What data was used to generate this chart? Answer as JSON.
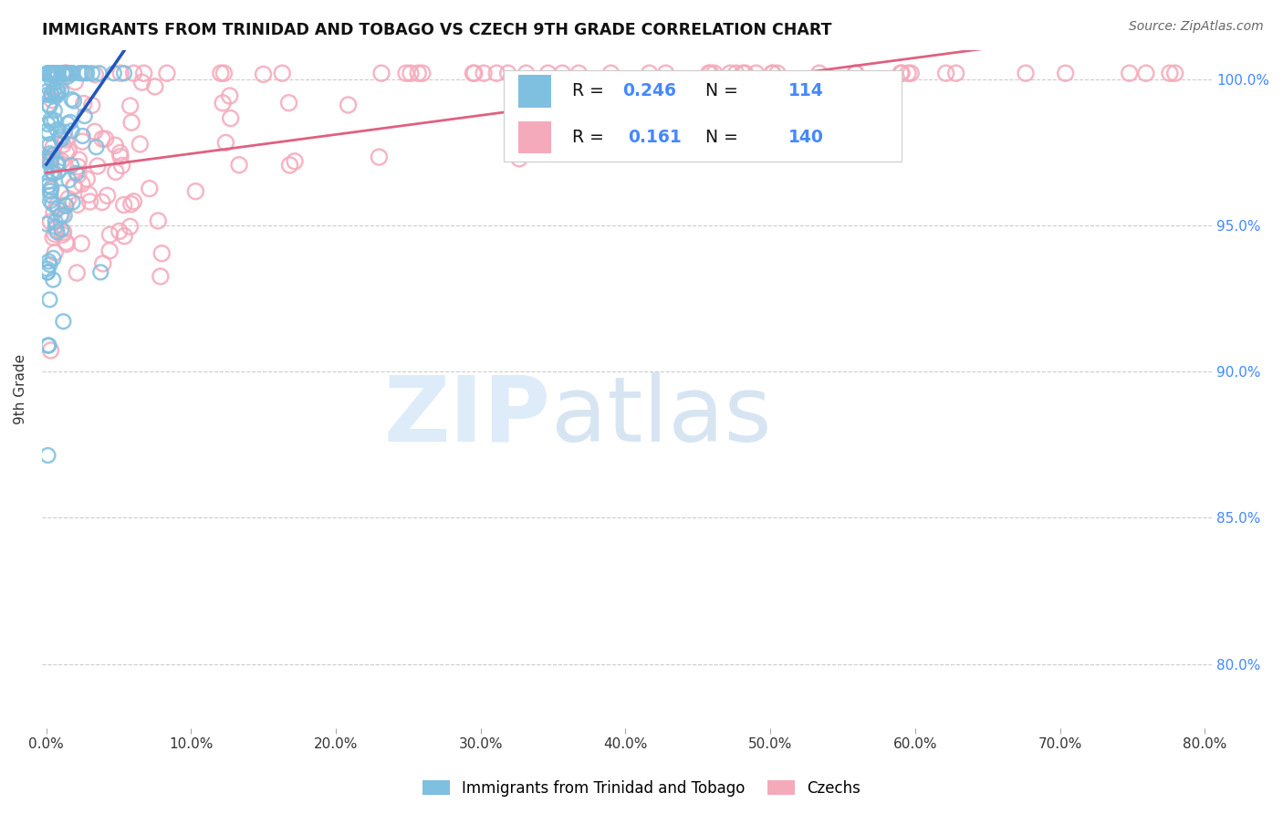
{
  "title": "IMMIGRANTS FROM TRINIDAD AND TOBAGO VS CZECH 9TH GRADE CORRELATION CHART",
  "source": "Source: ZipAtlas.com",
  "ylabel": "9th Grade",
  "blue_color": "#7fbfdf",
  "blue_edge_color": "#5599cc",
  "blue_line_color": "#2255bb",
  "pink_color": "#f4aabb",
  "pink_edge_color": "#e08090",
  "pink_line_color": "#e06080",
  "legend_label_blue": "Immigrants from Trinidad and Tobago",
  "legend_label_pink": "Czechs",
  "right_tick_color": "#4488ff",
  "watermark_zip_color": "#c8dff5",
  "watermark_atlas_color": "#b0cce8",
  "xlim_min": -0.003,
  "xlim_max": 0.805,
  "ylim_min": 0.778,
  "ylim_max": 1.01,
  "x_tick_vals": [
    0.0,
    0.1,
    0.2,
    0.3,
    0.4,
    0.5,
    0.6,
    0.7,
    0.8
  ],
  "x_tick_labels": [
    "0.0%",
    "10.0%",
    "20.0%",
    "30.0%",
    "40.0%",
    "50.0%",
    "60.0%",
    "70.0%",
    "80.0%"
  ],
  "y_tick_vals": [
    0.8,
    0.85,
    0.9,
    0.95,
    1.0
  ],
  "y_tick_labels": [
    "80.0%",
    "85.0%",
    "90.0%",
    "95.0%",
    "100.0%"
  ],
  "legend_r_blue": "0.246",
  "legend_n_blue": "114",
  "legend_r_pink": "0.161",
  "legend_n_pink": "140"
}
